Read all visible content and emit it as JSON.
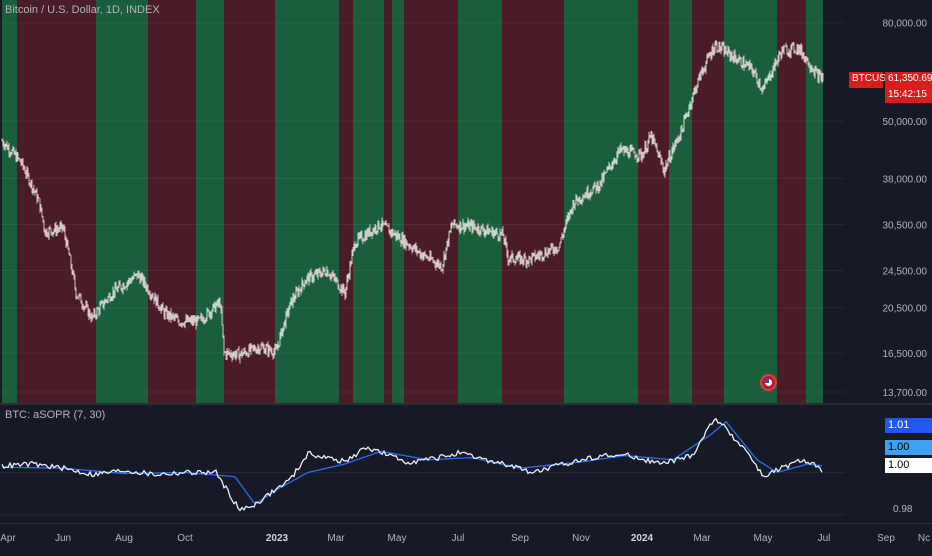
{
  "main_chart": {
    "title": "Bitcoin / U.S. Dollar, 1D, INDEX",
    "symbol_tag": "BTCUSD",
    "last_price": "61,350.69",
    "countdown": "15:42:15",
    "price_ticks": [
      "80,000.00",
      "50,000.00",
      "38,000.00",
      "30,500.00",
      "24,500.00",
      "20,500.00",
      "16,500.00",
      "13,700.00"
    ],
    "flag_icon": "us-flag-icon"
  },
  "indicator": {
    "title": "BTC: aSOPR (7, 30)",
    "value_tags": [
      "1.01",
      "1.00",
      "1.00"
    ],
    "scale_ticks": [
      "0.98"
    ]
  },
  "time_axis": {
    "labels": [
      "Apr",
      "Jun",
      "Aug",
      "Oct",
      "2023",
      "Mar",
      "May",
      "Jul",
      "Sep",
      "Nov",
      "2024",
      "Mar",
      "May",
      "Jul",
      "Sep",
      "Nc"
    ]
  },
  "chart_data": {
    "type": "line",
    "x_range": [
      "2022-04-01",
      "2024-11-01"
    ],
    "y_scale": "log",
    "ylim": [
      13000,
      85000
    ],
    "regime_colors": {
      "bullish": "#1b5e3c",
      "bearish": "#4a1c27"
    },
    "regimes": [
      {
        "start": "2022-04-01",
        "end": "2022-04-16",
        "state": "bullish"
      },
      {
        "start": "2022-04-16",
        "end": "2022-07-04",
        "state": "bearish"
      },
      {
        "start": "2022-07-04",
        "end": "2022-08-25",
        "state": "bullish"
      },
      {
        "start": "2022-08-25",
        "end": "2022-10-12",
        "state": "bearish"
      },
      {
        "start": "2022-10-12",
        "end": "2022-11-09",
        "state": "bullish"
      },
      {
        "start": "2022-11-09",
        "end": "2022-12-30",
        "state": "bearish"
      },
      {
        "start": "2022-12-30",
        "end": "2023-03-04",
        "state": "bullish"
      },
      {
        "start": "2023-03-04",
        "end": "2023-03-18",
        "state": "bearish"
      },
      {
        "start": "2023-03-18",
        "end": "2023-04-18",
        "state": "bullish"
      },
      {
        "start": "2023-04-18",
        "end": "2023-04-26",
        "state": "bearish"
      },
      {
        "start": "2023-04-26",
        "end": "2023-05-08",
        "state": "bullish"
      },
      {
        "start": "2023-05-08",
        "end": "2023-07-01",
        "state": "bearish"
      },
      {
        "start": "2023-07-01",
        "end": "2023-08-14",
        "state": "bullish"
      },
      {
        "start": "2023-08-14",
        "end": "2023-10-15",
        "state": "bearish"
      },
      {
        "start": "2023-10-15",
        "end": "2023-12-28",
        "state": "bullish"
      },
      {
        "start": "2023-12-28",
        "end": "2024-01-28",
        "state": "bearish"
      },
      {
        "start": "2024-01-28",
        "end": "2024-02-20",
        "state": "bullish"
      },
      {
        "start": "2024-02-20",
        "end": "2024-03-23",
        "state": "bearish"
      },
      {
        "start": "2024-03-23",
        "end": "2024-05-15",
        "state": "bullish"
      },
      {
        "start": "2024-05-15",
        "end": "2024-06-13",
        "state": "bearish"
      },
      {
        "start": "2024-06-13",
        "end": "2024-06-30",
        "state": "bullish"
      }
    ],
    "series": [
      {
        "name": "BTCUSD",
        "x": [
          "2022-04-01",
          "2022-04-20",
          "2022-05-08",
          "2022-05-14",
          "2022-06-01",
          "2022-06-14",
          "2022-06-30",
          "2022-07-20",
          "2022-08-15",
          "2022-09-10",
          "2022-09-25",
          "2022-10-15",
          "2022-11-05",
          "2022-11-09",
          "2022-11-25",
          "2022-12-15",
          "2022-12-31",
          "2023-01-15",
          "2023-01-30",
          "2023-02-20",
          "2023-03-10",
          "2023-03-20",
          "2023-04-14",
          "2023-05-05",
          "2023-05-25",
          "2023-06-15",
          "2023-06-25",
          "2023-07-15",
          "2023-08-15",
          "2023-08-20",
          "2023-09-10",
          "2023-10-10",
          "2023-10-25",
          "2023-11-20",
          "2023-12-10",
          "2024-01-01",
          "2024-01-10",
          "2024-01-23",
          "2024-02-10",
          "2024-02-28",
          "2024-03-14",
          "2024-04-01",
          "2024-04-20",
          "2024-05-01",
          "2024-05-20",
          "2024-06-05",
          "2024-06-25",
          "2024-06-30"
        ],
        "values": [
          45500,
          41000,
          34000,
          29500,
          30000,
          22000,
          19500,
          22000,
          24000,
          20000,
          19200,
          19200,
          21000,
          16500,
          16400,
          17000,
          16600,
          21000,
          23500,
          24500,
          22000,
          28000,
          30500,
          28500,
          26500,
          25000,
          30500,
          30200,
          29000,
          26000,
          25800,
          27500,
          34000,
          37000,
          43500,
          42500,
          46500,
          39500,
          48000,
          62000,
          72000,
          68000,
          64000,
          58000,
          70000,
          71000,
          62000,
          61350
        ]
      },
      {
        "name": "aSOPR",
        "x": [
          "2022-04-01",
          "2022-05-01",
          "2022-06-01",
          "2022-07-01",
          "2022-08-01",
          "2022-09-01",
          "2022-10-01",
          "2022-11-01",
          "2022-11-25",
          "2022-12-10",
          "2022-12-25",
          "2023-01-15",
          "2023-02-01",
          "2023-03-10",
          "2023-04-01",
          "2023-05-10",
          "2023-06-01",
          "2023-07-01",
          "2023-08-15",
          "2023-09-15",
          "2023-10-15",
          "2023-11-20",
          "2023-12-20",
          "2024-01-20",
          "2024-02-20",
          "2024-03-14",
          "2024-04-15",
          "2024-05-01",
          "2024-05-20",
          "2024-06-10",
          "2024-06-25",
          "2024-06-30"
        ],
        "values": [
          1.003,
          1.004,
          1.002,
          0.999,
          1.001,
          0.999,
          1.0,
          1.0,
          0.982,
          0.985,
          0.99,
          0.997,
          1.009,
          1.005,
          1.012,
          1.005,
          1.006,
          1.009,
          1.004,
          1.0,
          1.004,
          1.008,
          1.008,
          1.004,
          1.008,
          1.026,
          1.01,
          0.998,
          1.002,
          1.006,
          1.003,
          0.998
        ]
      },
      {
        "name": "aSOPR MA",
        "x": [
          "2022-04-01",
          "2022-06-01",
          "2022-08-01",
          "2022-10-01",
          "2022-11-20",
          "2022-12-10",
          "2023-01-01",
          "2023-02-01",
          "2023-03-10",
          "2023-04-15",
          "2023-06-01",
          "2023-07-15",
          "2023-09-01",
          "2023-11-01",
          "2023-12-15",
          "2024-02-01",
          "2024-03-10",
          "2024-03-25",
          "2024-04-25",
          "2024-05-15",
          "2024-06-15",
          "2024-06-30"
        ],
        "values": [
          1.0025,
          1.002,
          0.9995,
          1.0,
          0.998,
          0.985,
          0.992,
          1.0,
          1.004,
          1.01,
          1.006,
          1.007,
          1.002,
          1.005,
          1.008,
          1.006,
          1.018,
          1.024,
          1.006,
          1.0,
          1.004,
          1.003
        ]
      }
    ]
  }
}
